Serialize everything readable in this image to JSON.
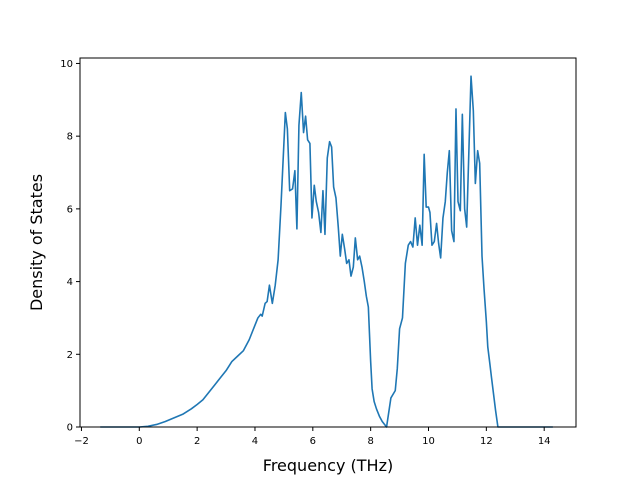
{
  "chart_data": {
    "type": "line",
    "title": "",
    "xlabel": "Frequency (THz)",
    "ylabel": "Density of States",
    "xlim": [
      -2.05,
      15.1
    ],
    "ylim": [
      0,
      10.15
    ],
    "xticks": [
      -2,
      0,
      2,
      4,
      6,
      8,
      10,
      12,
      14
    ],
    "xtick_labels": [
      "−2",
      "0",
      "2",
      "4",
      "6",
      "8",
      "10",
      "12",
      "14"
    ],
    "yticks": [
      0,
      2,
      4,
      6,
      8,
      10
    ],
    "ytick_labels": [
      "0",
      "2",
      "4",
      "6",
      "8",
      "10"
    ],
    "grid": false,
    "line_color": "#1f77b4",
    "series": [
      {
        "x": [
          -1.35,
          -0.5,
          0.0,
          0.3,
          0.6,
          0.9,
          1.2,
          1.5,
          1.8,
          2.0,
          2.2,
          2.4,
          2.6,
          2.8,
          3.0,
          3.2,
          3.4,
          3.6,
          3.8,
          4.0,
          4.1,
          4.2,
          4.25,
          4.35,
          4.42,
          4.5,
          4.6,
          4.7,
          4.8,
          4.9,
          5.0,
          5.05,
          5.12,
          5.2,
          5.3,
          5.38,
          5.45,
          5.52,
          5.6,
          5.68,
          5.75,
          5.82,
          5.9,
          5.97,
          6.05,
          6.12,
          6.2,
          6.28,
          6.35,
          6.42,
          6.5,
          6.58,
          6.65,
          6.72,
          6.8,
          6.88,
          6.95,
          7.02,
          7.1,
          7.17,
          7.25,
          7.32,
          7.4,
          7.47,
          7.55,
          7.62,
          7.7,
          7.78,
          7.85,
          7.92,
          8.0,
          8.05,
          8.12,
          8.2,
          8.3,
          8.4,
          8.55,
          8.7,
          8.85,
          8.92,
          9.0,
          9.1,
          9.2,
          9.3,
          9.38,
          9.46,
          9.54,
          9.62,
          9.7,
          9.78,
          9.85,
          9.92,
          10.0,
          10.05,
          10.12,
          10.2,
          10.28,
          10.35,
          10.42,
          10.5,
          10.58,
          10.65,
          10.72,
          10.8,
          10.88,
          10.95,
          11.02,
          11.1,
          11.17,
          11.25,
          11.32,
          11.4,
          11.47,
          11.55,
          11.62,
          11.7,
          11.77,
          11.85,
          11.92,
          12.0,
          12.05,
          12.12,
          12.18,
          12.25,
          12.32,
          12.4,
          12.5,
          12.6,
          12.7,
          12.8,
          12.9,
          13.0,
          13.1,
          13.2,
          13.5,
          14.3
        ],
        "y": [
          0,
          0,
          0.0,
          0.02,
          0.07,
          0.15,
          0.25,
          0.35,
          0.5,
          0.62,
          0.75,
          0.95,
          1.15,
          1.35,
          1.55,
          1.8,
          1.95,
          2.1,
          2.4,
          2.8,
          3.0,
          3.1,
          3.05,
          3.4,
          3.45,
          3.9,
          3.4,
          3.9,
          4.6,
          6.1,
          7.8,
          8.65,
          8.2,
          6.5,
          6.55,
          7.05,
          5.45,
          8.3,
          9.2,
          8.1,
          8.55,
          7.9,
          7.8,
          5.75,
          6.65,
          6.2,
          5.9,
          5.35,
          6.5,
          5.3,
          7.4,
          7.85,
          7.7,
          6.6,
          6.3,
          5.5,
          4.7,
          5.3,
          4.9,
          4.5,
          4.6,
          4.15,
          4.4,
          5.2,
          4.6,
          4.7,
          4.4,
          4.0,
          3.6,
          3.3,
          1.8,
          1.05,
          0.7,
          0.5,
          0.3,
          0.15,
          0.0,
          0.8,
          1.0,
          1.6,
          2.7,
          3.0,
          4.5,
          5.0,
          5.1,
          4.95,
          5.75,
          5.0,
          5.55,
          5.0,
          7.5,
          6.05,
          6.05,
          5.9,
          5.0,
          5.1,
          5.6,
          5.05,
          4.65,
          5.75,
          6.2,
          7.0,
          7.6,
          5.4,
          5.1,
          8.75,
          6.2,
          5.95,
          8.6,
          6.0,
          5.5,
          7.7,
          9.65,
          8.7,
          6.7,
          7.6,
          7.25,
          4.7,
          3.8,
          2.9,
          2.2,
          1.75,
          1.35,
          0.9,
          0.45,
          0.0,
          0.0,
          0.0,
          0.0,
          0.0,
          0.0,
          0.0,
          0.0,
          0.0,
          0.0,
          0.0
        ]
      }
    ]
  }
}
